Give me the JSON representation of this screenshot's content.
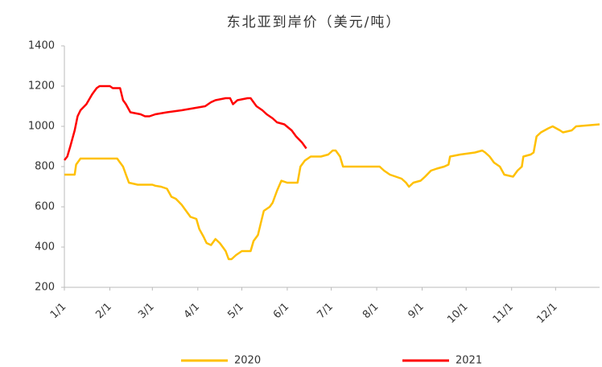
{
  "chart_data": {
    "type": "line",
    "title": "东北亚到岸价（美元/吨）",
    "xlim": [
      0,
      365
    ],
    "xticks": [
      {
        "value": 0,
        "label": "1/1"
      },
      {
        "value": 31,
        "label": "2/1"
      },
      {
        "value": 60,
        "label": "3/1"
      },
      {
        "value": 91,
        "label": "4/1"
      },
      {
        "value": 121,
        "label": "5/1"
      },
      {
        "value": 152,
        "label": "6/1"
      },
      {
        "value": 182,
        "label": "7/1"
      },
      {
        "value": 213,
        "label": "8/1"
      },
      {
        "value": 244,
        "label": "9/1"
      },
      {
        "value": 274,
        "label": "10/1"
      },
      {
        "value": 305,
        "label": "11/1"
      },
      {
        "value": 335,
        "label": "12/1"
      }
    ],
    "ylim": [
      200,
      1400
    ],
    "yticks": [
      200,
      400,
      600,
      800,
      1000,
      1200,
      1400
    ],
    "series": [
      {
        "name": "2020",
        "color": "#FFC000",
        "x": [
          0,
          7,
          8,
          11,
          36,
          38,
          40,
          42,
          44,
          50,
          60,
          62,
          66,
          70,
          73,
          76,
          80,
          83,
          86,
          90,
          92,
          95,
          97,
          100,
          103,
          106,
          108,
          110,
          112,
          114,
          117,
          121,
          127,
          129,
          132,
          134,
          136,
          140,
          142,
          145,
          148,
          152,
          159,
          161,
          164,
          168,
          175,
          180,
          183,
          185,
          188,
          190,
          215,
          218,
          222,
          226,
          230,
          233,
          235,
          238,
          243,
          246,
          250,
          254,
          259,
          262,
          263,
          270,
          280,
          285,
          287,
          290,
          293,
          297,
          300,
          306,
          309,
          312,
          313,
          318,
          320,
          322,
          325,
          330,
          333,
          338,
          340,
          346,
          349,
          365
        ],
        "values": [
          760,
          760,
          810,
          840,
          840,
          820,
          800,
          760,
          720,
          710,
          710,
          705,
          700,
          690,
          650,
          640,
          610,
          580,
          550,
          540,
          490,
          450,
          420,
          410,
          440,
          420,
          400,
          380,
          340,
          340,
          360,
          380,
          380,
          430,
          460,
          520,
          580,
          600,
          620,
          680,
          730,
          720,
          720,
          800,
          830,
          850,
          850,
          860,
          880,
          880,
          850,
          800,
          800,
          780,
          760,
          750,
          740,
          720,
          700,
          720,
          730,
          750,
          780,
          790,
          800,
          810,
          850,
          860,
          870,
          880,
          870,
          850,
          820,
          800,
          760,
          750,
          780,
          800,
          850,
          860,
          870,
          950,
          970,
          990,
          1000,
          980,
          970,
          980,
          1000,
          1010
        ]
      },
      {
        "name": "2021",
        "color": "#FF0000",
        "x": [
          0,
          2,
          4,
          7,
          9,
          11,
          15,
          19,
          22,
          24,
          31,
          33,
          38,
          40,
          42,
          45,
          52,
          55,
          58,
          62,
          70,
          80,
          88,
          96,
          100,
          103,
          110,
          113,
          115,
          118,
          125,
          127,
          131,
          135,
          138,
          142,
          145,
          150,
          155,
          158,
          162,
          165
        ],
        "values": [
          832,
          850,
          900,
          980,
          1050,
          1080,
          1110,
          1160,
          1190,
          1200,
          1200,
          1190,
          1190,
          1130,
          1110,
          1070,
          1060,
          1050,
          1050,
          1060,
          1070,
          1080,
          1090,
          1100,
          1120,
          1130,
          1140,
          1140,
          1110,
          1130,
          1140,
          1140,
          1100,
          1080,
          1060,
          1040,
          1020,
          1010,
          980,
          950,
          920,
          890
        ]
      }
    ]
  }
}
